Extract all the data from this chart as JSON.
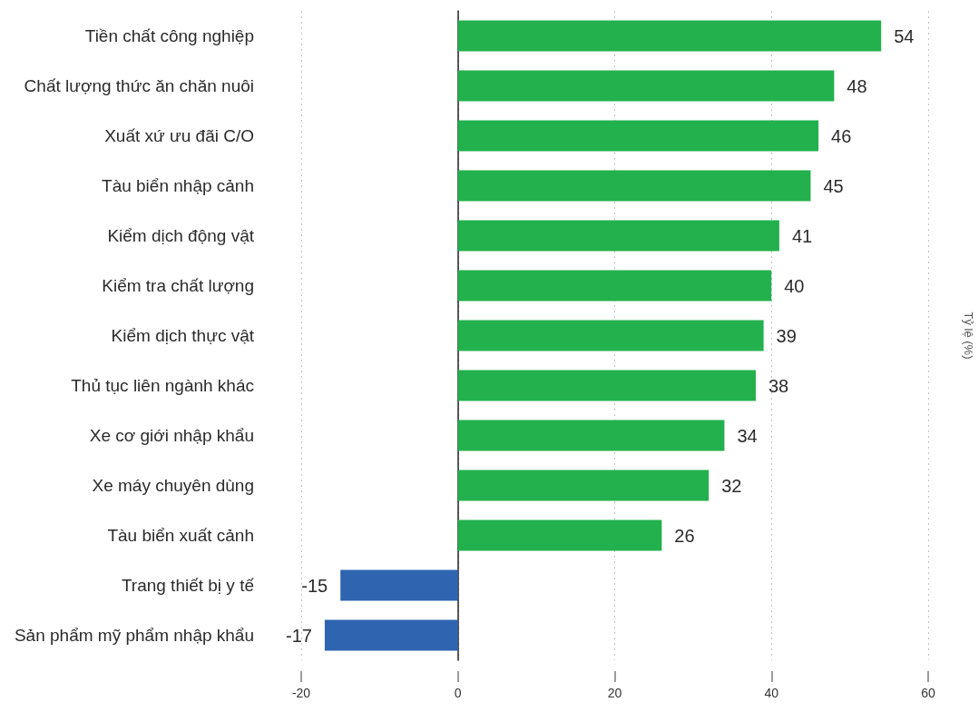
{
  "chart_data": {
    "type": "bar",
    "orientation": "horizontal",
    "categories": [
      "Tiền chất công nghiệp",
      "Chất lượng thức ăn chăn nuôi",
      "Xuất xứ ưu đãi C/O",
      "Tàu biển nhập cảnh",
      "Kiểm dịch động vật",
      "Kiểm tra chất lượng",
      "Kiểm dịch thực vật",
      "Thủ tục liên ngành khác",
      "Xe cơ giới nhập khẩu",
      "Xe máy chuyên dùng",
      "Tàu biển xuất cảnh",
      "Trang thiết bị y tế",
      "Sản phẩm mỹ phẩm nhập khẩu"
    ],
    "values": [
      54,
      48,
      46,
      45,
      41,
      40,
      39,
      38,
      34,
      32,
      26,
      -15,
      -17
    ],
    "colors": [
      "#23b14d",
      "#23b14d",
      "#23b14d",
      "#23b14d",
      "#23b14d",
      "#23b14d",
      "#23b14d",
      "#23b14d",
      "#23b14d",
      "#23b14d",
      "#23b14d",
      "#2f64b1",
      "#2f64b1"
    ],
    "xlim": [
      -20,
      60
    ],
    "xticks": [
      -20,
      0,
      20,
      40,
      60
    ],
    "ylabel": "Tỷ lệ (%)",
    "grid": "x",
    "data_labels": true
  }
}
